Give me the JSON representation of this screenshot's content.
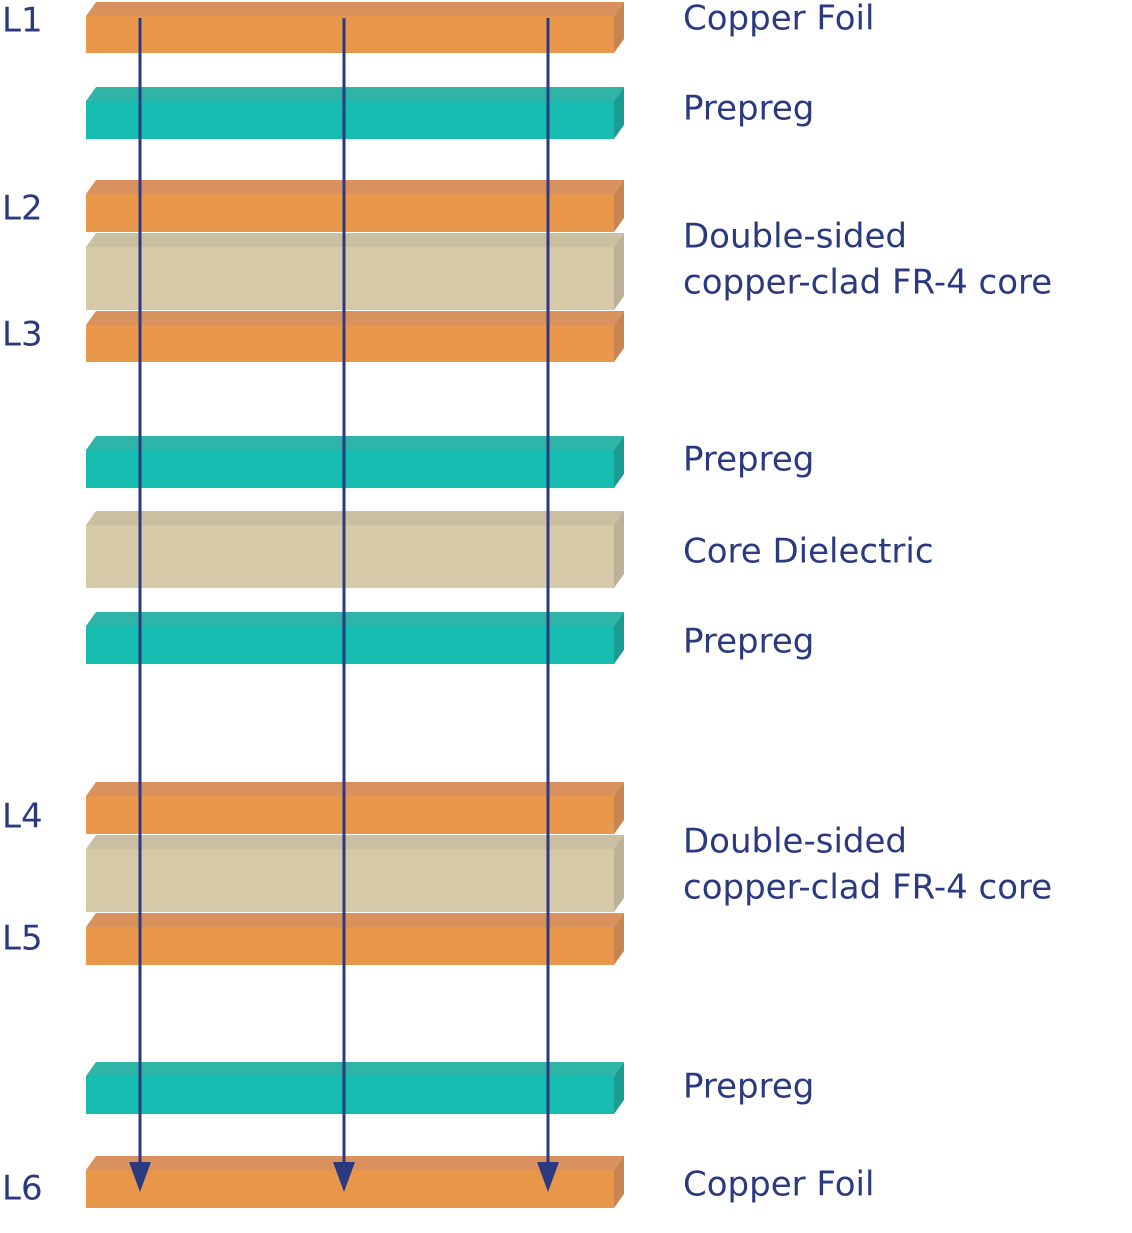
{
  "layer_labels": [
    "L1",
    "L2",
    "L3",
    "L4",
    "L5",
    "L6"
  ],
  "materials": [
    {
      "lines": [
        "Copper Foil"
      ]
    },
    {
      "lines": [
        "Prepreg"
      ]
    },
    {
      "lines": [
        "Double-sided",
        "copper-clad FR-4 core"
      ]
    },
    {
      "lines": [
        "Prepreg"
      ]
    },
    {
      "lines": [
        "Core Dielectric"
      ]
    },
    {
      "lines": [
        "Prepreg"
      ]
    },
    {
      "lines": [
        "Double-sided",
        "copper-clad FR-4 core"
      ]
    },
    {
      "lines": [
        "Prepreg"
      ]
    },
    {
      "lines": [
        "Copper Foil"
      ]
    }
  ]
}
